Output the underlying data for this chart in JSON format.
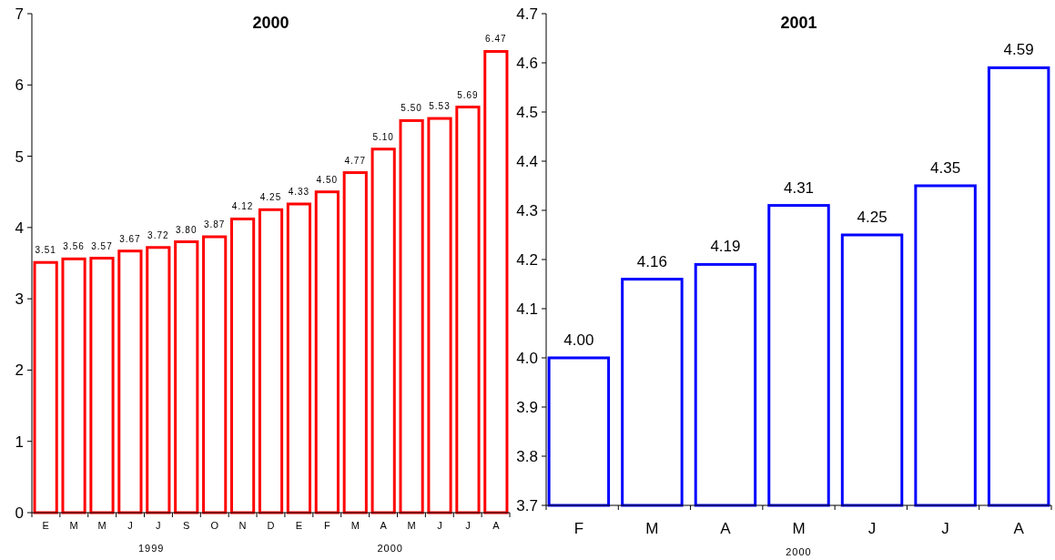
{
  "chart_data": [
    {
      "type": "bar",
      "title": "2000",
      "categories": [
        "E",
        "M",
        "M",
        "J",
        "J",
        "S",
        "O",
        "N",
        "D",
        "E",
        "F",
        "M",
        "A",
        "M",
        "J",
        "J",
        "A"
      ],
      "series": [
        {
          "color": "#ff0000",
          "values": [
            3.51,
            3.56,
            3.57,
            3.67,
            3.72,
            3.8,
            3.87,
            4.12,
            4.25,
            4.33,
            4.5,
            4.77,
            5.1,
            5.5,
            5.53,
            5.69,
            6.47
          ],
          "value_labels": [
            "3.51",
            "3.56",
            "3.57",
            "3.67",
            "3.72",
            "3.80",
            "3.87",
            "4.12",
            "4.25",
            "4.33",
            "4.50",
            "4.77",
            "5.10",
            "5.50",
            "5.53",
            "5.69",
            "6.47"
          ]
        }
      ],
      "ylim": [
        0,
        7
      ],
      "yticks": [
        0,
        1,
        2,
        3,
        4,
        5,
        6,
        7
      ],
      "annotations": [
        "1999",
        "2000"
      ]
    },
    {
      "type": "bar",
      "title": "2001",
      "categories": [
        "F",
        "M",
        "A",
        "M",
        "J",
        "J",
        "A"
      ],
      "series": [
        {
          "color": "#0000ff",
          "values": [
            4.0,
            4.16,
            4.19,
            4.31,
            4.25,
            4.35,
            4.59
          ],
          "value_labels": [
            "4.00",
            "4.16",
            "4.19",
            "4.31",
            "4.25",
            "4.35",
            "4.59"
          ]
        }
      ],
      "ylim": [
        3.7,
        4.7
      ],
      "yticks": [
        {
          "value": 3.7,
          "label": "3.7"
        },
        {
          "value": 3.8,
          "label": "3.8"
        },
        {
          "value": 3.9,
          "label": "3.9"
        },
        {
          "value": 4,
          "label": "4.0"
        },
        {
          "value": 4.1,
          "label": "4.1"
        },
        {
          "value": 4.2,
          "label": "4.2"
        },
        {
          "value": 4.3,
          "label": "4.3"
        },
        {
          "value": 4.4,
          "label": "4.4"
        },
        {
          "value": 4.5,
          "label": "4.5"
        },
        {
          "value": 4.6,
          "label": "4.6"
        },
        {
          "value": 4.7,
          "label": "4.7"
        }
      ],
      "annotations": [
        "2000"
      ]
    }
  ]
}
